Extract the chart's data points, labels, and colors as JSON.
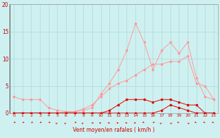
{
  "bg_color": "#cff0f0",
  "grid_color": "#aad8d8",
  "line_color_light": "#ff9999",
  "line_color_dark": "#dd0000",
  "xlabel": "Vent moyen/en rafales ( km/h )",
  "xlabel_color": "#cc0000",
  "ylabel_ticks": [
    0,
    5,
    10,
    15,
    20
  ],
  "xlim": [
    -0.5,
    23.5
  ],
  "ylim": [
    0,
    20
  ],
  "x_hours": [
    0,
    1,
    2,
    3,
    4,
    5,
    6,
    7,
    8,
    9,
    10,
    11,
    12,
    13,
    14,
    15,
    16,
    17,
    18,
    19,
    20,
    21,
    22,
    23
  ],
  "line_gust_y": [
    3.0,
    2.5,
    2.5,
    2.5,
    1.0,
    0.5,
    0.3,
    0.3,
    0.8,
    1.5,
    3.0,
    4.5,
    5.5,
    6.0,
    7.0,
    8.0,
    9.0,
    9.0,
    9.5,
    9.5,
    10.5,
    5.5,
    5.0,
    2.5
  ],
  "line_spike_y": [
    0.0,
    0.0,
    0.0,
    0.0,
    0.0,
    0.0,
    0.2,
    0.2,
    0.5,
    1.0,
    3.5,
    5.5,
    8.0,
    11.5,
    16.5,
    13.0,
    8.0,
    11.5,
    13.0,
    11.0,
    13.0,
    6.5,
    3.0,
    2.5
  ],
  "line_med_y": [
    0.0,
    0.0,
    0.0,
    0.0,
    0.0,
    0.0,
    0.0,
    0.0,
    0.0,
    0.0,
    0.0,
    0.5,
    1.5,
    2.5,
    2.5,
    2.5,
    2.0,
    2.5,
    2.5,
    2.0,
    1.5,
    1.5,
    0.0,
    0.0
  ],
  "line_low_y": [
    0.0,
    0.0,
    0.0,
    0.0,
    0.0,
    0.0,
    0.0,
    0.0,
    0.0,
    0.0,
    0.0,
    0.0,
    0.0,
    0.0,
    0.0,
    0.0,
    0.0,
    0.5,
    1.5,
    1.0,
    0.5,
    0.0,
    0.0,
    0.0
  ],
  "line_base_y": [
    0.0,
    0.0,
    0.0,
    0.0,
    0.0,
    0.0,
    0.0,
    0.0,
    0.0,
    0.0,
    0.0,
    0.0,
    0.0,
    0.0,
    0.0,
    0.0,
    0.0,
    0.0,
    0.0,
    0.0,
    0.0,
    0.0,
    0.0,
    0.0
  ],
  "arrow_angles": [
    225,
    225,
    225,
    225,
    225,
    45,
    45,
    225,
    45,
    270,
    90,
    90,
    90,
    90,
    90,
    135,
    225,
    45,
    315,
    135,
    315,
    135,
    135,
    135
  ]
}
